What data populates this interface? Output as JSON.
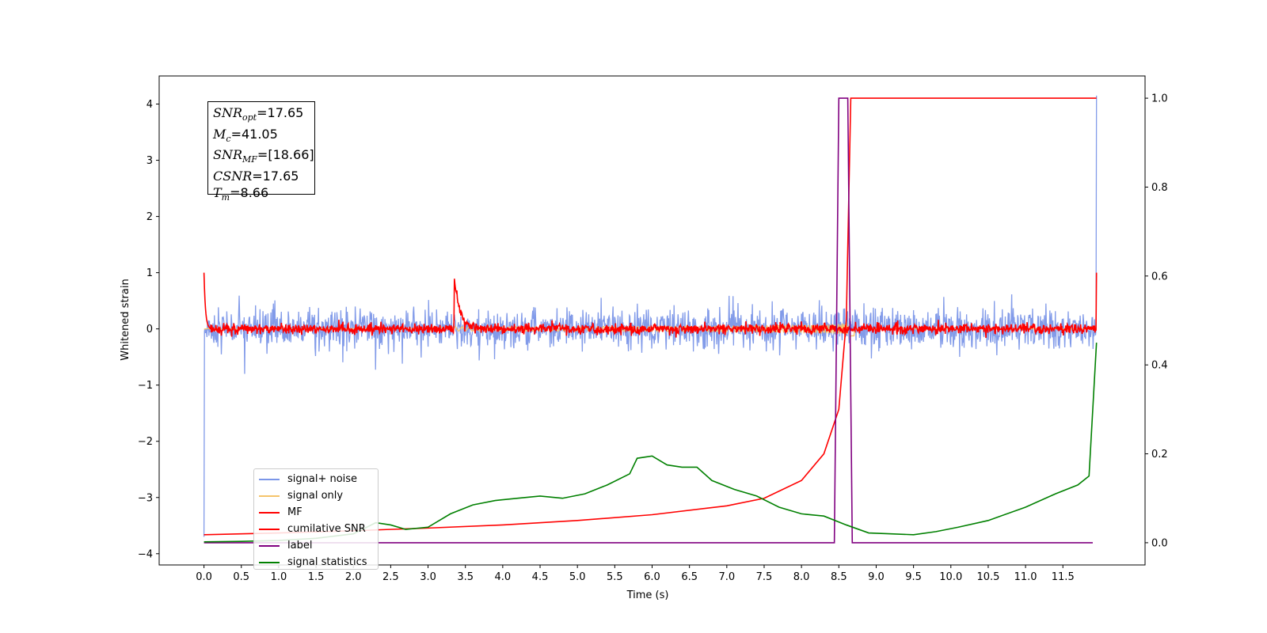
{
  "chart_data": {
    "type": "line",
    "xlabel": "Time (s)",
    "ylabel": "Whitened strain",
    "xlim": [
      -0.6,
      12.6
    ],
    "ylim_left": [
      -4.2,
      4.5
    ],
    "ylim_right": [
      -0.05,
      1.05
    ],
    "x_ticks": [
      "0.0",
      "0.5",
      "1.0",
      "1.5",
      "2.0",
      "2.5",
      "3.0",
      "3.5",
      "4.0",
      "4.5",
      "5.0",
      "5.5",
      "6.0",
      "6.5",
      "7.0",
      "7.5",
      "8.0",
      "8.5",
      "9.0",
      "9.5",
      "10.0",
      "10.5",
      "11.0",
      "11.5"
    ],
    "y_ticks_left": [
      "−4",
      "−3",
      "−2",
      "−1",
      "0",
      "1",
      "2",
      "3",
      "4"
    ],
    "y_ticks_right": [
      "0.0",
      "0.2",
      "0.4",
      "0.6",
      "0.8",
      "1.0"
    ],
    "legend_placement": "lower-left",
    "annotation": {
      "snr_opt": "=17.65",
      "mc": "=41.05",
      "snr_mf": "=[18.66]",
      "csnr": "=17.65",
      "tm": "=8.66"
    },
    "series": [
      {
        "name": "signal+ noise",
        "color": "#7b96e8",
        "axis": "left",
        "description_values": {
          "noise_amplitude": 0.4,
          "mean": 0.0,
          "start_value": -3.7,
          "end_value": 4.15
        }
      },
      {
        "name": "signal only",
        "color": "#f5c46b",
        "axis": "left",
        "description_values": {
          "peak_time": 8.66,
          "peak_value": 0.5
        }
      },
      {
        "name": "MF",
        "color": "#ff0000",
        "axis": "left",
        "description_values": {
          "start_value": 1.0,
          "bump_time": 3.35,
          "bump_value": 0.9,
          "end_value": 1.0
        }
      },
      {
        "name": "cumilative SNR",
        "color": "#ff0000",
        "axis": "right",
        "x": [
          0.0,
          1.0,
          2.0,
          3.0,
          4.0,
          5.0,
          6.0,
          7.0,
          7.5,
          8.0,
          8.3,
          8.5,
          8.6,
          8.66,
          8.7,
          11.95
        ],
        "y": [
          0.018,
          0.022,
          0.027,
          0.033,
          0.04,
          0.05,
          0.063,
          0.083,
          0.1,
          0.14,
          0.2,
          0.3,
          0.5,
          1.0,
          1.0,
          1.0
        ]
      },
      {
        "name": "label",
        "color": "#800080",
        "axis": "right",
        "x": [
          0.0,
          8.44,
          8.5,
          8.62,
          8.68,
          11.9
        ],
        "y": [
          0.0,
          0.0,
          1.0,
          1.0,
          0.0,
          0.0
        ]
      },
      {
        "name": "signal statistics",
        "color": "#008000",
        "axis": "right",
        "x": [
          0.0,
          0.5,
          1.0,
          1.5,
          2.0,
          2.3,
          2.5,
          2.7,
          3.0,
          3.3,
          3.6,
          3.9,
          4.2,
          4.5,
          4.8,
          5.1,
          5.4,
          5.7,
          5.8,
          6.0,
          6.2,
          6.4,
          6.6,
          6.8,
          7.1,
          7.4,
          7.7,
          8.0,
          8.3,
          8.6,
          8.9,
          9.2,
          9.5,
          9.8,
          10.1,
          10.5,
          11.0,
          11.4,
          11.7,
          11.85,
          11.95
        ],
        "y": [
          0.002,
          0.003,
          0.005,
          0.01,
          0.02,
          0.045,
          0.04,
          0.03,
          0.035,
          0.065,
          0.085,
          0.095,
          0.1,
          0.105,
          0.1,
          0.11,
          0.13,
          0.155,
          0.19,
          0.195,
          0.175,
          0.17,
          0.17,
          0.14,
          0.12,
          0.105,
          0.08,
          0.065,
          0.06,
          0.04,
          0.022,
          0.02,
          0.018,
          0.025,
          0.035,
          0.05,
          0.08,
          0.11,
          0.13,
          0.15,
          0.45
        ]
      }
    ]
  },
  "legend": [
    {
      "label": "signal+ noise",
      "color": "#7b96e8"
    },
    {
      "label": "signal only",
      "color": "#f5c46b"
    },
    {
      "label": "MF",
      "color": "#ff0000"
    },
    {
      "label": "cumilative SNR",
      "color": "#ff0000"
    },
    {
      "label": "label",
      "color": "#800080"
    },
    {
      "label": "signal statistics",
      "color": "#008000"
    }
  ]
}
